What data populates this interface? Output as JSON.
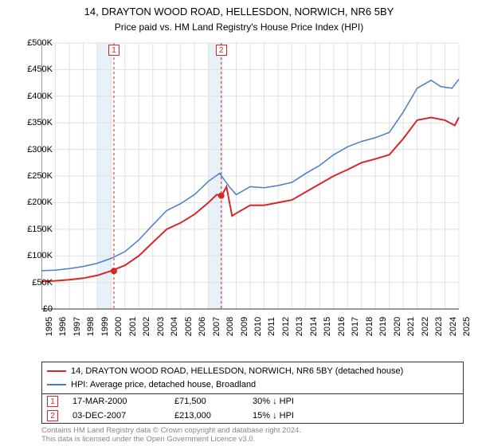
{
  "title_line1": "14, DRAYTON WOOD ROAD, HELLESDON, NORWICH, NR6 5BY",
  "title_line2": "Price paid vs. HM Land Registry's House Price Index (HPI)",
  "chart": {
    "type": "line",
    "plot_background": "#ffffff",
    "grid_color": "#e0e0e0",
    "axis_color": "#333333",
    "font_size_ticks": 11,
    "ylim": [
      0,
      500000
    ],
    "ytick_step": 50000,
    "ytick_labels": [
      "£0",
      "£50K",
      "£100K",
      "£150K",
      "£200K",
      "£250K",
      "£300K",
      "£350K",
      "£400K",
      "£450K",
      "£500K"
    ],
    "x_years": [
      1995,
      1996,
      1997,
      1998,
      1999,
      2000,
      2001,
      2002,
      2003,
      2004,
      2005,
      2006,
      2007,
      2008,
      2009,
      2010,
      2011,
      2012,
      2013,
      2014,
      2015,
      2016,
      2017,
      2018,
      2019,
      2020,
      2021,
      2022,
      2023,
      2024,
      2025
    ],
    "series": [
      {
        "name": "property",
        "color": "#d62728",
        "width": 2,
        "label": "14, DRAYTON WOOD ROAD, HELLESDON, NORWICH, NR6 5BY (detached house)",
        "points": [
          [
            1995,
            52000
          ],
          [
            1996,
            53000
          ],
          [
            1997,
            55000
          ],
          [
            1998,
            58000
          ],
          [
            1999,
            63000
          ],
          [
            2000,
            71500
          ],
          [
            2001,
            82000
          ],
          [
            2002,
            100000
          ],
          [
            2003,
            125000
          ],
          [
            2004,
            150000
          ],
          [
            2005,
            162000
          ],
          [
            2006,
            178000
          ],
          [
            2007,
            200000
          ],
          [
            2007.6,
            215000
          ],
          [
            2007.95,
            213000
          ],
          [
            2008.3,
            230000
          ],
          [
            2008.7,
            175000
          ],
          [
            2009,
            180000
          ],
          [
            2010,
            195000
          ],
          [
            2011,
            195000
          ],
          [
            2012,
            200000
          ],
          [
            2013,
            205000
          ],
          [
            2014,
            220000
          ],
          [
            2015,
            235000
          ],
          [
            2016,
            250000
          ],
          [
            2017,
            262000
          ],
          [
            2018,
            275000
          ],
          [
            2019,
            282000
          ],
          [
            2020,
            290000
          ],
          [
            2021,
            320000
          ],
          [
            2022,
            355000
          ],
          [
            2023,
            360000
          ],
          [
            2024,
            355000
          ],
          [
            2024.7,
            345000
          ],
          [
            2025,
            360000
          ]
        ]
      },
      {
        "name": "hpi",
        "color": "#4a7ec8",
        "width": 1.5,
        "label": "HPI: Average price, detached house, Broadland",
        "points": [
          [
            1995,
            72000
          ],
          [
            1996,
            73000
          ],
          [
            1997,
            76000
          ],
          [
            1998,
            80000
          ],
          [
            1999,
            86000
          ],
          [
            2000,
            95000
          ],
          [
            2001,
            108000
          ],
          [
            2002,
            130000
          ],
          [
            2003,
            158000
          ],
          [
            2004,
            185000
          ],
          [
            2005,
            198000
          ],
          [
            2006,
            215000
          ],
          [
            2007,
            240000
          ],
          [
            2007.8,
            255000
          ],
          [
            2008.5,
            230000
          ],
          [
            2009,
            215000
          ],
          [
            2010,
            230000
          ],
          [
            2011,
            228000
          ],
          [
            2012,
            232000
          ],
          [
            2013,
            238000
          ],
          [
            2014,
            255000
          ],
          [
            2015,
            270000
          ],
          [
            2016,
            290000
          ],
          [
            2017,
            305000
          ],
          [
            2018,
            315000
          ],
          [
            2019,
            322000
          ],
          [
            2020,
            332000
          ],
          [
            2021,
            370000
          ],
          [
            2022,
            415000
          ],
          [
            2023,
            430000
          ],
          [
            2023.7,
            418000
          ],
          [
            2024.5,
            415000
          ],
          [
            2025,
            432000
          ]
        ]
      }
    ],
    "shaded_regions": [
      {
        "from": 1999,
        "to": 2000,
        "color": "#e8f0f8"
      },
      {
        "from": 2007,
        "to": 2008,
        "color": "#e8f0f8"
      }
    ],
    "event_markers": [
      {
        "num": "1",
        "year": 2000.21,
        "value": 71500,
        "color": "#d62728"
      },
      {
        "num": "2",
        "year": 2007.92,
        "value": 213000,
        "color": "#d62728"
      }
    ]
  },
  "legend": {
    "rows": [
      {
        "color": "#d62728",
        "label": "14, DRAYTON WOOD ROAD, HELLESDON, NORWICH, NR6 5BY (detached house)"
      },
      {
        "color": "#4a7ec8",
        "label": "HPI: Average price, detached house, Broadland"
      }
    ]
  },
  "events": [
    {
      "num": "1",
      "color": "#d62728",
      "date": "17-MAR-2000",
      "price": "£71,500",
      "delta": "30% ↓ HPI"
    },
    {
      "num": "2",
      "color": "#d62728",
      "date": "03-DEC-2007",
      "price": "£213,000",
      "delta": "15% ↓ HPI"
    }
  ],
  "footer_line1": "Contains HM Land Registry data © Crown copyright and database right 2024.",
  "footer_line2": "This data is licensed under the Open Government Licence v3.0."
}
